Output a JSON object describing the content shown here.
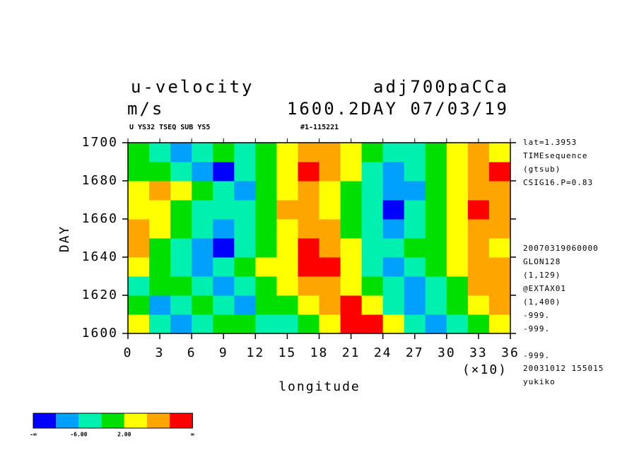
{
  "chart_data": {
    "type": "contour",
    "title": "u-velocity",
    "title_right": "adj700paCCa",
    "units": "m/s",
    "subtitle_right": "1600.2DAY 07/03/19",
    "header_left": "U YS32 TSEQ SUB YS5",
    "header_right": "#1-115221",
    "xlabel": "longitude",
    "xscale_label": "(×10)",
    "ylabel": "DAY",
    "xlim": [
      0,
      36
    ],
    "xticks": [
      0,
      3,
      6,
      9,
      12,
      15,
      18,
      21,
      24,
      27,
      30,
      33,
      36
    ],
    "ylim": [
      1600,
      1700
    ],
    "yticks": [
      1600,
      1620,
      1640,
      1660,
      1680,
      1700
    ],
    "levels": [
      -10,
      -6,
      -2,
      2,
      6,
      10
    ],
    "colors": [
      "#0000ff",
      "#00a0ff",
      "#00f0b0",
      "#00e000",
      "#ffff00",
      "#ffa500",
      "#ff0000"
    ],
    "colorbar_labels": [
      "-∞",
      "-6.00",
      "2.00",
      "∞"
    ],
    "notes_top": [
      "lat=1.3953",
      "TIMEsequence",
      "(gtsub)",
      "CSIG16.P=0.83"
    ],
    "notes_bottom": [
      "20070319060000",
      "GLON128",
      "(1,129)",
      "@EXTAX01",
      "(1,400)",
      "-999.",
      "-999.",
      "-999.",
      "20031012 155015",
      "yukiko"
    ],
    "values": [
      [
        2,
        -3,
        -7,
        -4,
        0,
        -2,
        -5,
        -3,
        0,
        5,
        12,
        11,
        3,
        -4,
        -8,
        -5,
        -2,
        4
      ],
      [
        0,
        -8,
        -4,
        0,
        -3,
        -7,
        -2,
        1,
        3,
        7,
        10,
        4,
        -3,
        -9,
        -6,
        -2,
        3,
        6
      ],
      [
        -3,
        -2,
        0,
        -6,
        -10,
        -4,
        0,
        2,
        6,
        8,
        5,
        -2,
        -6,
        -8,
        -4,
        0,
        6,
        9
      ],
      [
        4,
        -2,
        -6,
        -9,
        -5,
        -1,
        2,
        3,
        11,
        12,
        3,
        -4,
        -7,
        -3,
        0,
        3,
        8,
        7
      ],
      [
        6,
        0,
        -4,
        -8,
        -11,
        -6,
        -1,
        4,
        10,
        8,
        2,
        -3,
        -5,
        -2,
        1,
        4,
        7,
        5
      ],
      [
        8,
        3,
        -2,
        -5,
        -8,
        -4,
        0,
        5,
        9,
        6,
        1,
        -5,
        -8,
        -4,
        0,
        3,
        9,
        8
      ],
      [
        5,
        2,
        0,
        -3,
        -6,
        -3,
        1,
        6,
        7,
        3,
        -2,
        -6,
        -11,
        -6,
        -1,
        4,
        11,
        8
      ],
      [
        3,
        7,
        2,
        -2,
        -5,
        -7,
        -2,
        4,
        8,
        5,
        0,
        -5,
        -8,
        -7,
        -2,
        3,
        7,
        9
      ],
      [
        -2,
        0,
        -4,
        -8,
        -11,
        -6,
        -2,
        3,
        11,
        7,
        2,
        -4,
        -9,
        -4,
        0,
        2,
        6,
        10
      ],
      [
        -1,
        -4,
        -7,
        -3,
        -1,
        -3,
        -2,
        2,
        6,
        9,
        3,
        -2,
        -5,
        -3,
        -1,
        4,
        9,
        5
      ]
    ]
  }
}
